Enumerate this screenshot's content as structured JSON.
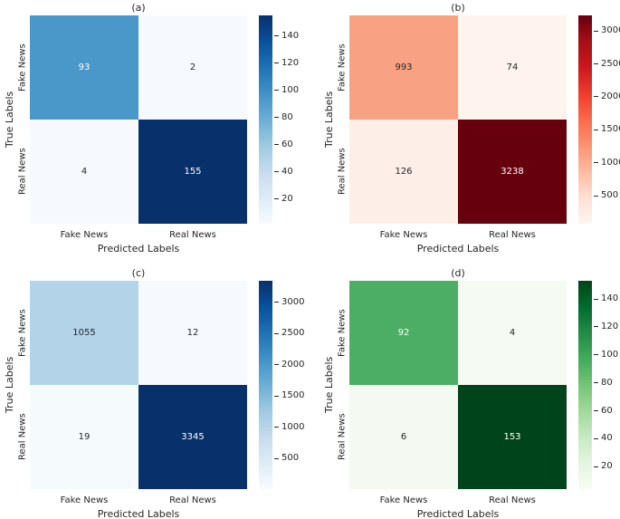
{
  "figure": {
    "background": "#ffffff",
    "text_color": "#262626",
    "description": "Four confusion matrices (a)-(d) for Fake News vs Real News classification"
  },
  "chart_data": [
    {
      "type": "heatmap",
      "title": "(a)",
      "colormap": "Blues",
      "xlabel": "Predicted Labels",
      "ylabel": "True Labels",
      "x_categories": [
        "Fake News",
        "Real News"
      ],
      "y_categories": [
        "Fake News",
        "Real News"
      ],
      "values": [
        [
          93,
          2
        ],
        [
          4,
          155
        ]
      ],
      "vmin": 2,
      "vmax": 155,
      "colorbar_ticks": [
        20,
        40,
        60,
        80,
        100,
        120,
        140
      ],
      "cell_colors": [
        [
          "#4a98c9",
          "#f6fafe"
        ],
        [
          "#f6fafe",
          "#08306b"
        ]
      ],
      "cell_text_colors": [
        [
          "#ffffff",
          "#262626"
        ],
        [
          "#262626",
          "#ffffff"
        ]
      ],
      "gradient": [
        "#f7fbff",
        "#deebf7",
        "#c6dbef",
        "#9ecae1",
        "#6baed6",
        "#4292c6",
        "#2171b5",
        "#08519c",
        "#08306b"
      ]
    },
    {
      "type": "heatmap",
      "title": "(b)",
      "colormap": "Reds",
      "xlabel": "Predicted Labels",
      "ylabel": "True Labels",
      "x_categories": [
        "Fake News",
        "Real News"
      ],
      "y_categories": [
        "Fake News",
        "Real News"
      ],
      "values": [
        [
          993,
          74
        ],
        [
          126,
          3238
        ]
      ],
      "vmin": 74,
      "vmax": 3238,
      "colorbar_ticks": [
        500,
        1000,
        1500,
        2000,
        2500,
        3000
      ],
      "cell_colors": [
        [
          "#f9a283",
          "#fef3ed"
        ],
        [
          "#fdefe8",
          "#67000d"
        ]
      ],
      "cell_text_colors": [
        [
          "#262626",
          "#262626"
        ],
        [
          "#262626",
          "#ffffff"
        ]
      ],
      "gradient": [
        "#fff5f0",
        "#fee0d2",
        "#fcbba1",
        "#fc9272",
        "#fb6a4a",
        "#ef3b2c",
        "#cb181d",
        "#a50f15",
        "#67000d"
      ]
    },
    {
      "type": "heatmap",
      "title": "(c)",
      "colormap": "Blues",
      "xlabel": "Predicted Labels",
      "ylabel": "True Labels",
      "x_categories": [
        "Fake News",
        "Real News"
      ],
      "y_categories": [
        "Fake News",
        "Real News"
      ],
      "values": [
        [
          1055,
          12
        ],
        [
          19,
          3345
        ]
      ],
      "vmin": 12,
      "vmax": 3345,
      "colorbar_ticks": [
        500,
        1000,
        1500,
        2000,
        2500,
        3000
      ],
      "cell_colors": [
        [
          "#b2d3e8",
          "#f6fafe"
        ],
        [
          "#f5fafd",
          "#08306b"
        ]
      ],
      "cell_text_colors": [
        [
          "#262626",
          "#262626"
        ],
        [
          "#262626",
          "#ffffff"
        ]
      ],
      "gradient": [
        "#f7fbff",
        "#deebf7",
        "#c6dbef",
        "#9ecae1",
        "#6baed6",
        "#4292c6",
        "#2171b5",
        "#08519c",
        "#08306b"
      ]
    },
    {
      "type": "heatmap",
      "title": "(d)",
      "colormap": "Greens",
      "xlabel": "Predicted Labels",
      "ylabel": "True Labels",
      "x_categories": [
        "Fake News",
        "Real News"
      ],
      "y_categories": [
        "Fake News",
        "Real News"
      ],
      "values": [
        [
          92,
          4
        ],
        [
          6,
          153
        ]
      ],
      "vmin": 4,
      "vmax": 153,
      "colorbar_ticks": [
        20,
        40,
        60,
        80,
        100,
        120,
        140
      ],
      "cell_colors": [
        [
          "#4bae64",
          "#f5fbf2"
        ],
        [
          "#f4faf1",
          "#00441b"
        ]
      ],
      "cell_text_colors": [
        [
          "#ffffff",
          "#262626"
        ],
        [
          "#262626",
          "#ffffff"
        ]
      ],
      "gradient": [
        "#f7fcf5",
        "#e5f5e0",
        "#c7e9c0",
        "#a1d99b",
        "#74c476",
        "#41ab5d",
        "#238b45",
        "#006d2c",
        "#00441b"
      ]
    }
  ]
}
